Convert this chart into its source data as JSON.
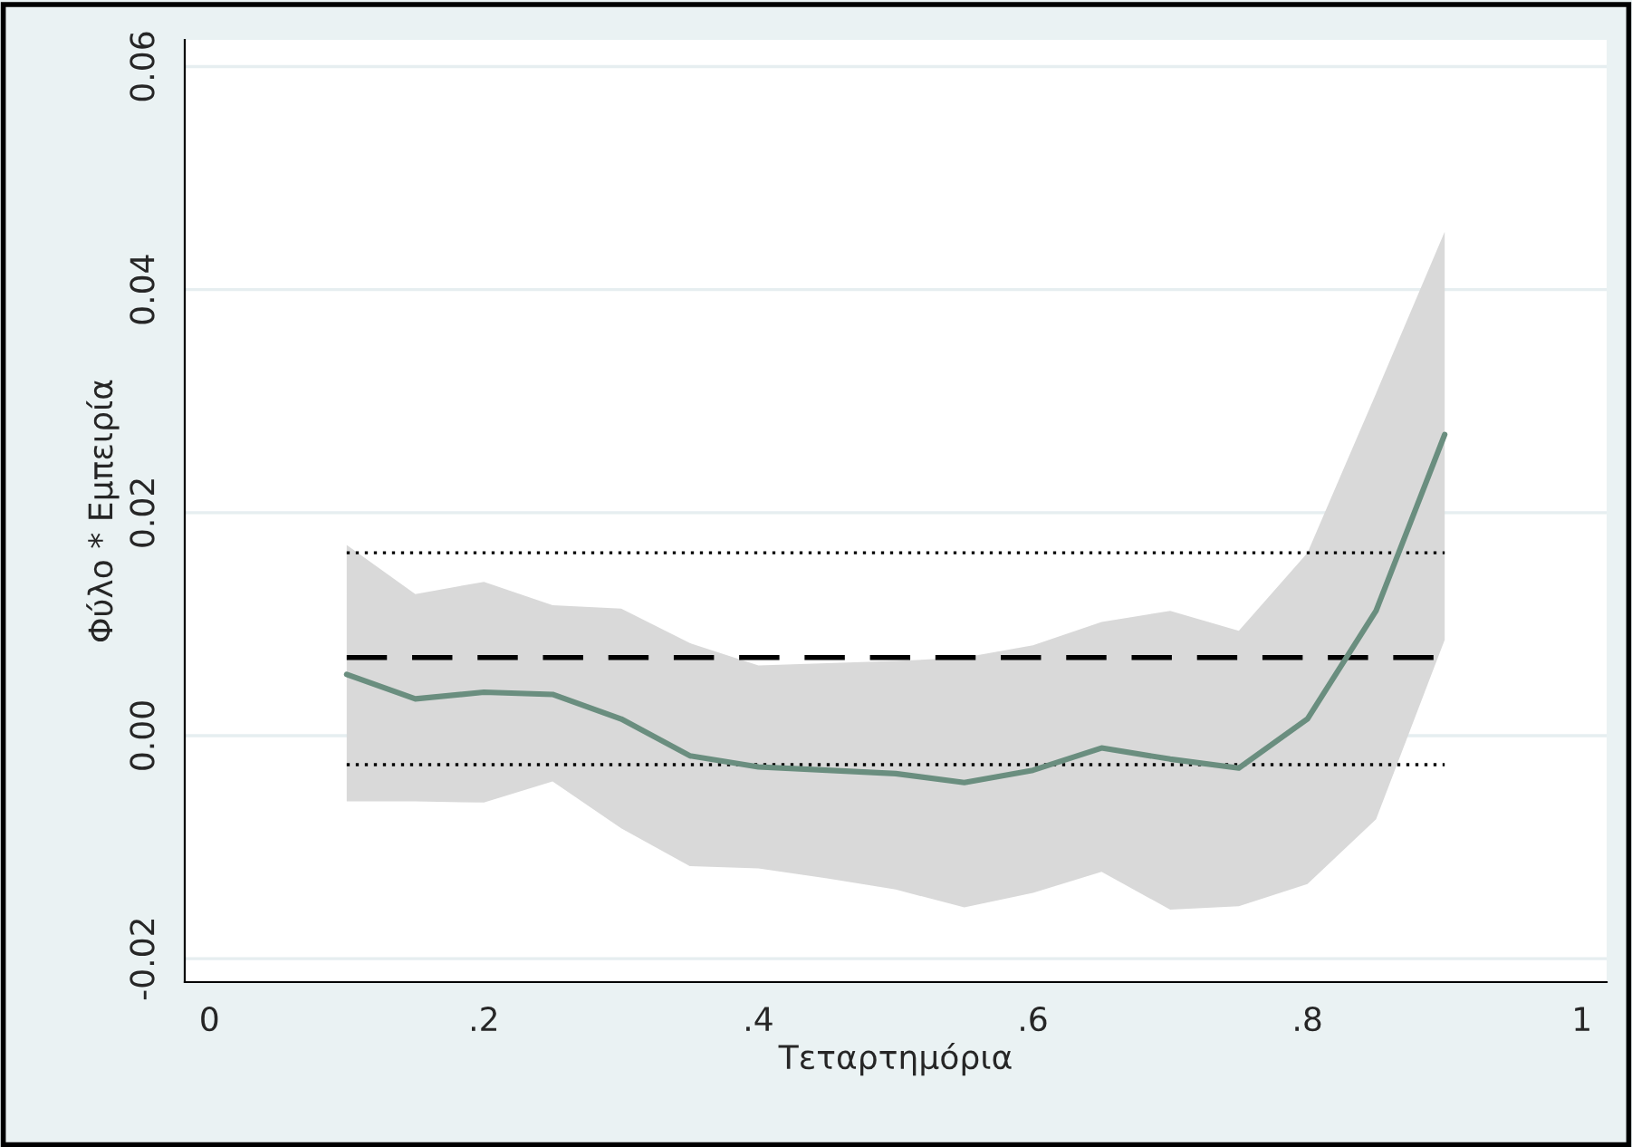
{
  "chart_data": {
    "type": "line",
    "xlabel": "Τεταρτημόρια",
    "ylabel": "Φύλο * Εμπειρία",
    "x": [
      0.1,
      0.15,
      0.2,
      0.25,
      0.3,
      0.35,
      0.4,
      0.45,
      0.5,
      0.55,
      0.6,
      0.65,
      0.7,
      0.75,
      0.8,
      0.85,
      0.9
    ],
    "series": [
      {
        "color": "#6a8e7f",
        "values": [
          0.0055,
          0.0033,
          0.0039,
          0.0037,
          0.0015,
          -0.0018,
          -0.0028,
          -0.0031,
          -0.0034,
          -0.0042,
          -0.0031,
          -0.0011,
          -0.0021,
          -0.0029,
          0.0015,
          0.0112,
          0.027
        ],
        "upper": [
          0.0171,
          0.0127,
          0.0138,
          0.0117,
          0.0114,
          0.0083,
          0.0063,
          0.0065,
          0.0067,
          0.007,
          0.0081,
          0.0102,
          0.0112,
          0.0094,
          0.0164,
          0.0307,
          0.0452
        ],
        "lower": [
          -0.0059,
          -0.0059,
          -0.006,
          -0.0041,
          -0.0083,
          -0.0117,
          -0.0119,
          -0.0128,
          -0.0138,
          -0.0154,
          -0.0141,
          -0.0122,
          -0.0156,
          -0.0153,
          -0.0133,
          -0.0075,
          0.0086
        ]
      }
    ],
    "ref_lines": [
      {
        "axis": "y",
        "value": 0.007,
        "line_style": "dashed",
        "color": "#000000"
      },
      {
        "axis": "y",
        "value": 0.0164,
        "line_style": "dotted",
        "color": "#000000"
      },
      {
        "axis": "y",
        "value": -0.0026,
        "line_style": "dotted",
        "color": "#000000"
      }
    ],
    "xlim": [
      -0.018,
      1.018
    ],
    "ylim": [
      -0.0221,
      0.0624
    ],
    "xticks": [
      0,
      {
        "value": 0.2,
        "label": ".2"
      },
      {
        "value": 0.4,
        "label": ".4"
      },
      {
        "value": 0.6,
        "label": ".6"
      },
      {
        "value": 0.8,
        "label": ".8"
      },
      1
    ],
    "yticks": [
      {
        "value": -0.02,
        "label": "-0.02"
      },
      {
        "value": 0,
        "label": "0.00"
      },
      {
        "value": 0.02,
        "label": "0.02"
      },
      {
        "value": 0.04,
        "label": "0.04"
      },
      {
        "value": 0.06,
        "label": "0.06"
      }
    ],
    "grid": "y",
    "legend": false,
    "marker": "none",
    "line_style": "solid"
  }
}
